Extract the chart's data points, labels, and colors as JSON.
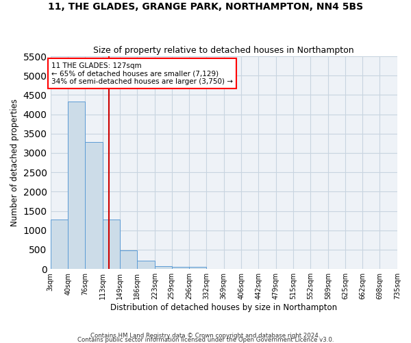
{
  "title1": "11, THE GLADES, GRANGE PARK, NORTHAMPTON, NN4 5BS",
  "title2": "Size of property relative to detached houses in Northampton",
  "xlabel": "Distribution of detached houses by size in Northampton",
  "ylabel": "Number of detached properties",
  "annotation_line1": "11 THE GLADES: 127sqm",
  "annotation_line2": "← 65% of detached houses are smaller (7,129)",
  "annotation_line3": "34% of semi-detached houses are larger (3,750) →",
  "footer1": "Contains HM Land Registry data © Crown copyright and database right 2024.",
  "footer2": "Contains public sector information licensed under the Open Government Licence v3.0.",
  "property_size": 127,
  "bin_edges": [
    3,
    40,
    76,
    113,
    149,
    186,
    223,
    259,
    296,
    332,
    369,
    406,
    442,
    479,
    515,
    552,
    589,
    625,
    662,
    698,
    735
  ],
  "bin_labels": [
    "3sqm",
    "40sqm",
    "76sqm",
    "113sqm",
    "149sqm",
    "186sqm",
    "223sqm",
    "259sqm",
    "296sqm",
    "332sqm",
    "369sqm",
    "406sqm",
    "442sqm",
    "479sqm",
    "515sqm",
    "552sqm",
    "589sqm",
    "625sqm",
    "662sqm",
    "698sqm",
    "735sqm"
  ],
  "bar_values": [
    1270,
    4330,
    3290,
    1280,
    480,
    215,
    80,
    60,
    50,
    0,
    0,
    0,
    0,
    0,
    0,
    0,
    0,
    0,
    0,
    0
  ],
  "bar_color": "#ccdce8",
  "bar_edge_color": "#5b9bd5",
  "vline_color": "#cc0000",
  "grid_color": "#c8d4e0",
  "bg_color": "#eef2f7",
  "ylim": [
    0,
    5500
  ],
  "yticks": [
    0,
    500,
    1000,
    1500,
    2000,
    2500,
    3000,
    3500,
    4000,
    4500,
    5000,
    5500
  ]
}
